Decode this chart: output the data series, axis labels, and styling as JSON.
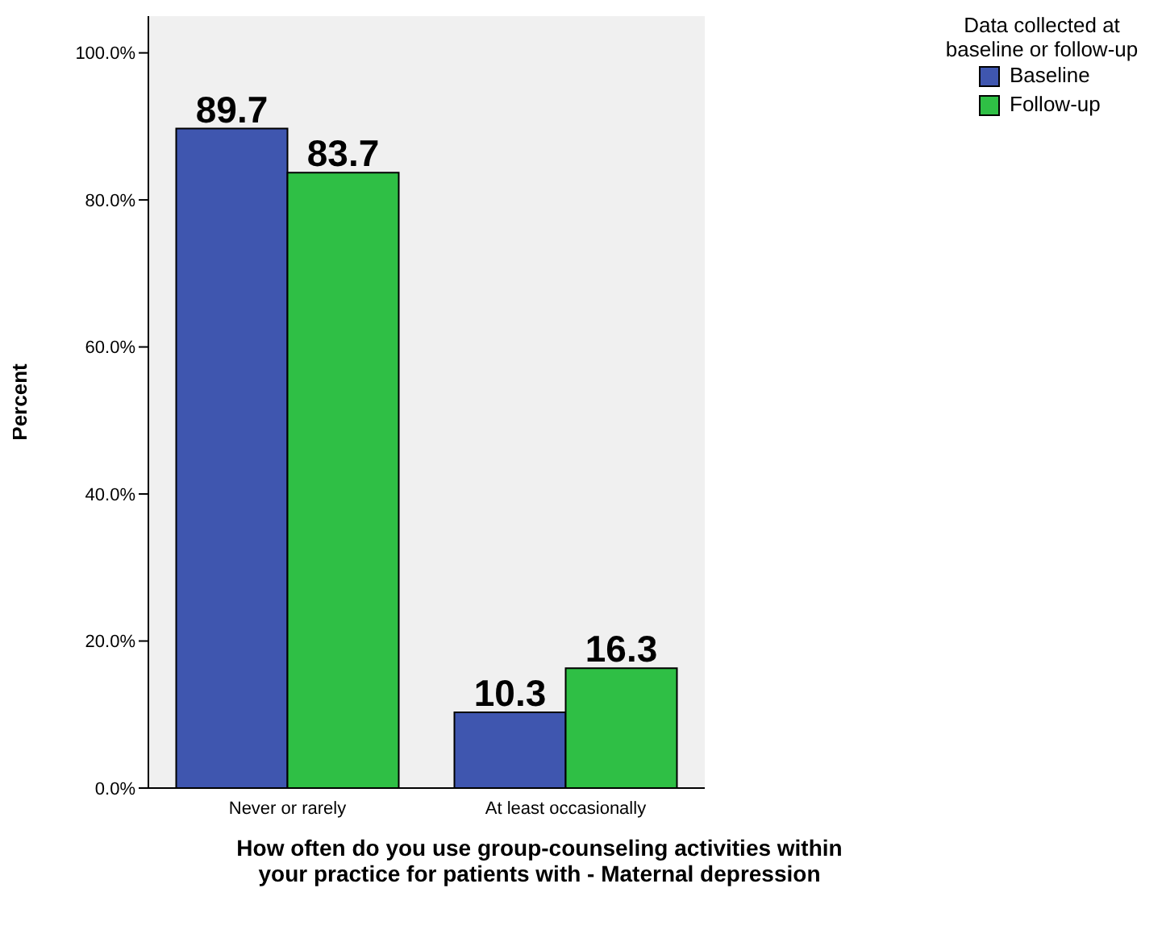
{
  "chart_data": {
    "type": "bar",
    "xlabel": "How often do you use group-counseling activities within your practice for patients with - Maternal depression",
    "ylabel": "Percent",
    "legend_title": "Data collected at baseline or follow-up",
    "categories": [
      "Never or rarely",
      "At least occasionally"
    ],
    "series": [
      {
        "name": "Baseline",
        "color": "#3f56af",
        "values": [
          89.7,
          10.3
        ]
      },
      {
        "name": "Follow-up",
        "color": "#2fbf45",
        "values": [
          83.7,
          16.3
        ]
      }
    ],
    "ylim": [
      0,
      105
    ],
    "yticks": [
      {
        "value": 0,
        "label": "0.0%"
      },
      {
        "value": 20,
        "label": "20.0%"
      },
      {
        "value": 40,
        "label": "40.0%"
      },
      {
        "value": 60,
        "label": "60.0%"
      },
      {
        "value": 80,
        "label": "80.0%"
      },
      {
        "value": 100,
        "label": "100.0%"
      }
    ],
    "data_labels": true,
    "legend": "top right",
    "grid": false
  }
}
